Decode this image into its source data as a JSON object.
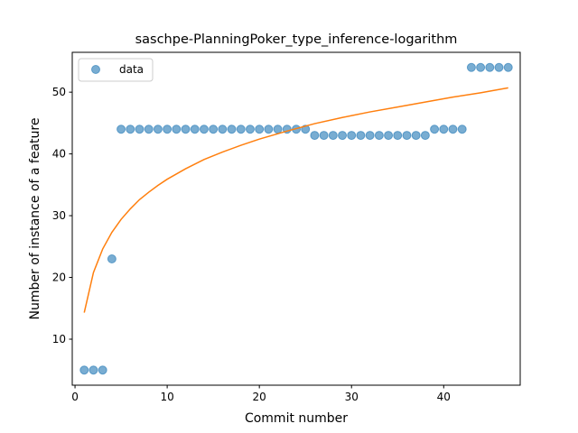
{
  "chart_data": {
    "type": "scatter",
    "title": "saschpe-PlanningPoker_type_inference-logarithm",
    "xlabel": "Commit number",
    "ylabel": "Number of instance of a feature",
    "xlim": [
      -0.3,
      48.3
    ],
    "ylim": [
      2.55,
      56.45
    ],
    "xticks": [
      0,
      10,
      20,
      30,
      40
    ],
    "yticks": [
      10,
      20,
      30,
      40,
      50
    ],
    "legend_position": "top-left",
    "grid": false,
    "series": [
      {
        "name": "data",
        "kind": "scatter",
        "color": "#1f77b4",
        "x": [
          1,
          2,
          3,
          4,
          5,
          6,
          7,
          8,
          9,
          10,
          11,
          12,
          13,
          14,
          15,
          16,
          17,
          18,
          19,
          20,
          21,
          22,
          23,
          24,
          25,
          26,
          27,
          28,
          29,
          30,
          31,
          32,
          33,
          34,
          35,
          36,
          37,
          38,
          39,
          40,
          41,
          42,
          43,
          44,
          45,
          46,
          47
        ],
        "y": [
          5,
          5,
          5,
          23,
          44,
          44,
          44,
          44,
          44,
          44,
          44,
          44,
          44,
          44,
          44,
          44,
          44,
          44,
          44,
          44,
          44,
          44,
          44,
          44,
          44,
          43,
          43,
          43,
          43,
          43,
          43,
          43,
          43,
          43,
          43,
          43,
          43,
          43,
          44,
          44,
          44,
          44,
          54,
          54,
          54,
          54,
          54
        ]
      },
      {
        "name": "",
        "kind": "line",
        "color": "#ff7f0e",
        "x": [
          1,
          2,
          3,
          4,
          5,
          6,
          7,
          8,
          9,
          10,
          12,
          14,
          16,
          18,
          20,
          23,
          26,
          29,
          32,
          35,
          38,
          41,
          44,
          47
        ],
        "y": [
          14.3,
          20.8,
          24.6,
          27.3,
          29.4,
          31.1,
          32.6,
          33.8,
          34.9,
          35.9,
          37.6,
          39.1,
          40.3,
          41.4,
          42.4,
          43.7,
          44.9,
          45.9,
          46.8,
          47.6,
          48.4,
          49.2,
          49.9,
          50.7
        ]
      }
    ]
  }
}
